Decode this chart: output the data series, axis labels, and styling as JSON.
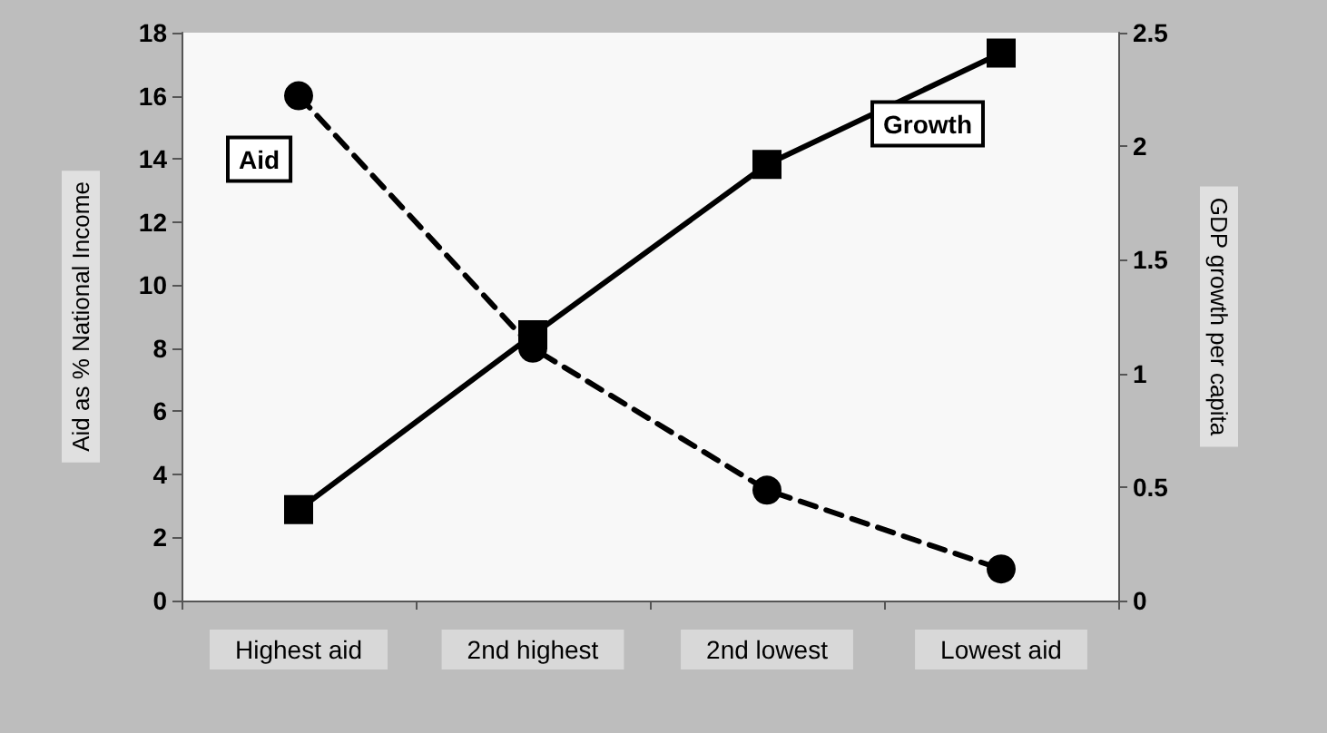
{
  "chart_data": {
    "type": "line",
    "ylabel": "Aid as % National Income",
    "y2label": "GDP growth per capita",
    "categories": [
      "Highest aid",
      "2nd highest",
      "2nd lowest",
      "Lowest aid"
    ],
    "series": [
      {
        "name": "Aid",
        "color": "#000000",
        "values": [
          16,
          8,
          3.5,
          1
        ],
        "marker": "circle",
        "line_style": "dashed"
      },
      {
        "name": "Growth",
        "color": "#000000",
        "values": [
          0.4,
          1.17,
          1.92,
          2.41
        ],
        "marker": "square",
        "line_style": "solid",
        "axis": "y2"
      }
    ],
    "ylim": [
      0,
      18
    ],
    "yticks": [
      0,
      2,
      4,
      6,
      8,
      10,
      12,
      14,
      16,
      18
    ],
    "y2lim": [
      0,
      2.5
    ],
    "y2ticks": [
      0,
      0.5,
      1,
      1.5,
      2,
      2.5
    ],
    "grid": false,
    "legend": false
  }
}
